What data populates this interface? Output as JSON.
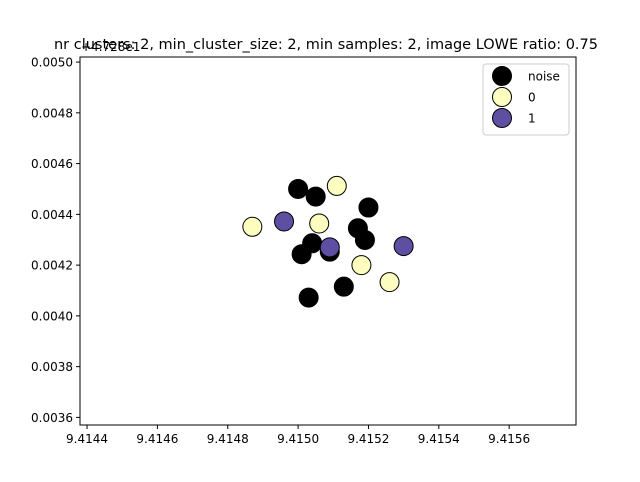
{
  "chart_data": {
    "type": "scatter",
    "title": "nr clusters: 2, min_cluster_size: 2, min samples: 2, image LOWE ratio: 0.75",
    "y_offset_label": "+4.728e1",
    "xlabel": "",
    "ylabel": "",
    "xlim": [
      9.41438,
      9.41579
    ],
    "ylim": [
      0.00357,
      0.00502
    ],
    "x_ticks": [
      9.4144,
      9.4146,
      9.4148,
      9.415,
      9.4152,
      9.4154,
      9.4156
    ],
    "x_tick_labels": [
      "9.4144",
      "9.4146",
      "9.4148",
      "9.4150",
      "9.4152",
      "9.4154",
      "9.4156"
    ],
    "y_ticks": [
      0.0036,
      0.0038,
      0.004,
      0.0042,
      0.0044,
      0.0046,
      0.0048,
      0.005
    ],
    "y_tick_labels": [
      "0.0036",
      "0.0038",
      "0.0040",
      "0.0042",
      "0.0044",
      "0.0046",
      "0.0048",
      "0.0050"
    ],
    "grid": false,
    "legend_position": "top-right",
    "series": [
      {
        "name": "noise",
        "color": "#000000",
        "points": [
          [
            9.415,
            0.0045
          ],
          [
            9.41505,
            0.00447
          ],
          [
            9.4152,
            0.004427
          ],
          [
            9.41517,
            0.004345
          ],
          [
            9.41519,
            0.004299
          ],
          [
            9.41504,
            0.004286
          ],
          [
            9.41501,
            0.004243
          ],
          [
            9.41509,
            0.004253
          ],
          [
            9.41513,
            0.004115
          ],
          [
            9.41503,
            0.004072
          ]
        ]
      },
      {
        "name": "0",
        "color": "#fcfdbf",
        "points": [
          [
            9.41511,
            0.004512
          ],
          [
            9.41487,
            0.004351
          ],
          [
            9.41506,
            0.004364
          ],
          [
            9.41518,
            0.0042
          ],
          [
            9.41526,
            0.004133
          ]
        ]
      },
      {
        "name": "1",
        "color": "#5e4fa2",
        "points": [
          [
            9.41496,
            0.004372
          ],
          [
            9.41509,
            0.00427
          ],
          [
            9.4153,
            0.004275
          ]
        ]
      }
    ]
  }
}
